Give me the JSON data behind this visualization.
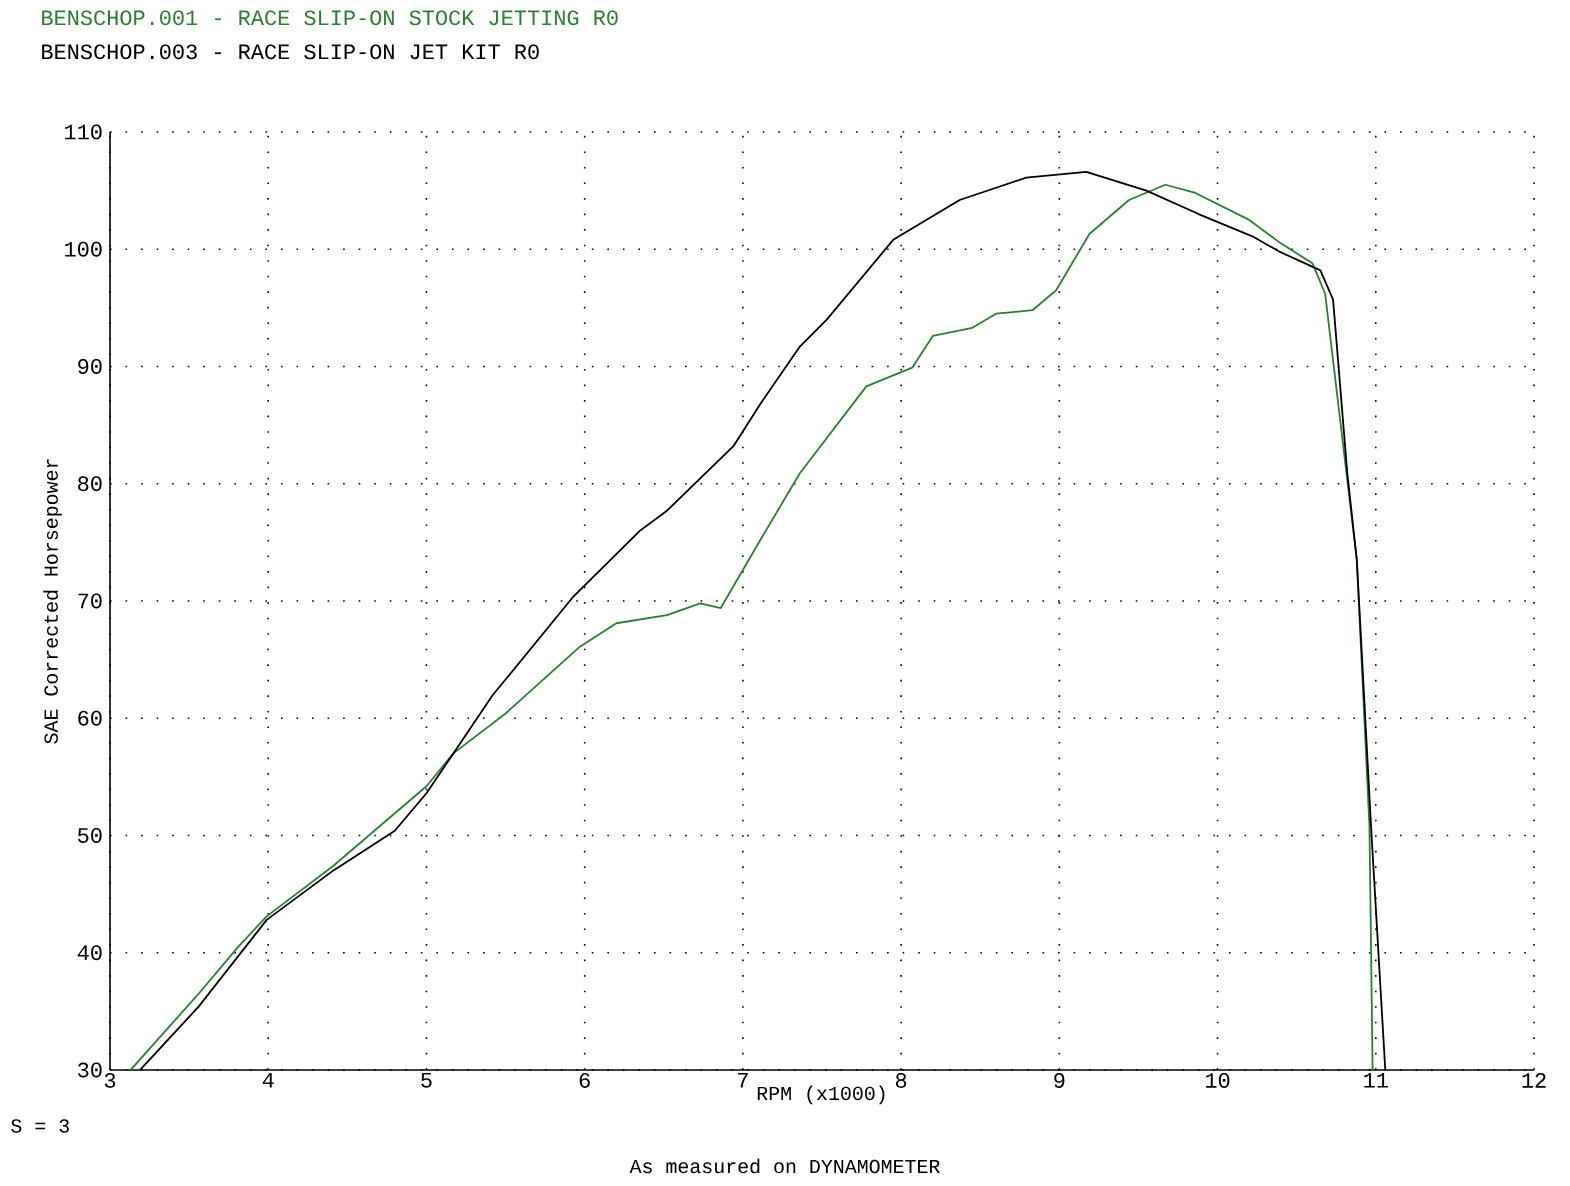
{
  "chart_data": {
    "type": "line",
    "xlabel": "RPM (x1000)",
    "ylabel": "SAE Corrected Horsepower",
    "xlim": [
      3,
      12
    ],
    "ylim": [
      30,
      110
    ],
    "xticks": [
      3,
      4,
      5,
      6,
      7,
      8,
      9,
      10,
      11,
      12
    ],
    "yticks": [
      30,
      40,
      50,
      60,
      70,
      80,
      90,
      100,
      110
    ],
    "grid": true,
    "legend": "top left",
    "line_style": "solid",
    "marker": "none",
    "annotations": [
      "S = 3",
      "As measured on DYNAMOMETER"
    ],
    "series": [
      {
        "name": "BENSCHOP.001 - RACE SLIP-ON STOCK JETTING R0",
        "color": "#2e7d32",
        "x": [
          3.13,
          3.56,
          3.81,
          3.99,
          4.41,
          5.0,
          5.17,
          5.5,
          5.59,
          5.97,
          6.2,
          6.52,
          6.73,
          6.86,
          7.11,
          7.36,
          7.78,
          8.07,
          8.2,
          8.45,
          8.6,
          8.83,
          8.98,
          9.19,
          9.44,
          9.67,
          9.86,
          10.2,
          10.4,
          10.6,
          10.68,
          10.88,
          10.96,
          10.98
        ],
        "values": [
          30,
          36.5,
          40.5,
          43.1,
          47.4,
          54.2,
          57,
          60.4,
          61.5,
          66.1,
          68.1,
          68.8,
          69.8,
          69.4,
          75.2,
          80.9,
          88.3,
          89.9,
          92.6,
          93.3,
          94.5,
          94.8,
          96.5,
          101.3,
          104.2,
          105.5,
          104.8,
          102.5,
          100.5,
          98.8,
          96.2,
          73.5,
          50.8,
          30
        ]
      },
      {
        "name": "BENSCHOP.003 - RACE SLIP-ON JET KIT R0",
        "color": "#000000",
        "x": [
          3.19,
          3.56,
          3.99,
          4.41,
          4.8,
          5.0,
          5.17,
          5.42,
          5.5,
          5.93,
          6.35,
          6.52,
          6.94,
          7.11,
          7.36,
          7.53,
          7.95,
          8.37,
          8.79,
          9.17,
          9.55,
          9.88,
          10.22,
          10.39,
          10.65,
          10.73,
          10.82,
          10.88,
          10.97,
          11.06
        ],
        "values": [
          30,
          35.4,
          42.8,
          47,
          50.4,
          53.6,
          57,
          62,
          63.3,
          70.4,
          76,
          77.7,
          83.2,
          86.8,
          91.7,
          94,
          100.8,
          104.2,
          106.1,
          106.6,
          105,
          103,
          101.1,
          99.8,
          98.2,
          95.7,
          80.9,
          73.5,
          50.8,
          30
        ]
      }
    ]
  }
}
